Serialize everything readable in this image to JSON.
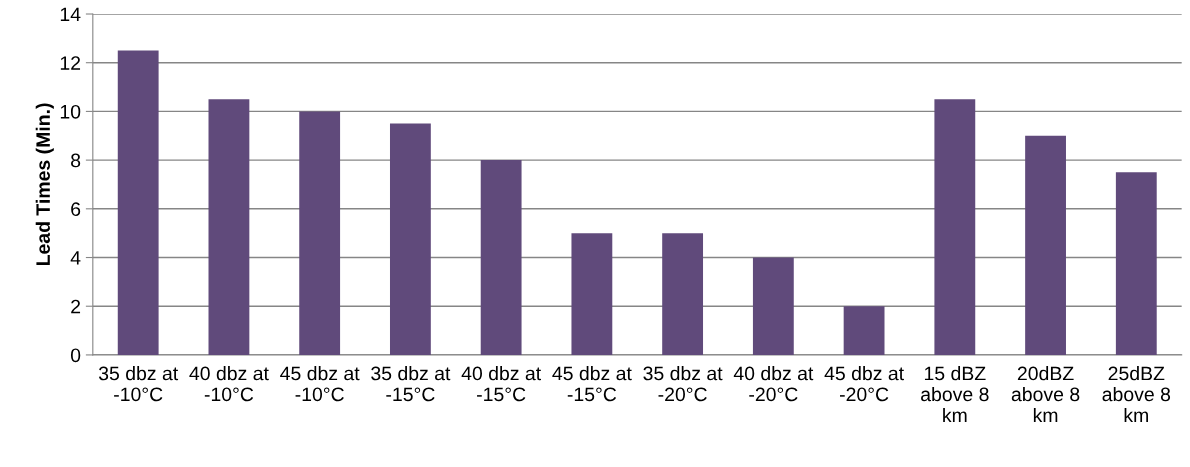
{
  "chart_data": {
    "type": "bar",
    "ylabel": "Lead Times (Min.)",
    "categories": [
      "35 dbz at -10°C",
      "40 dbz at -10°C",
      "45 dbz at -10°C",
      "35 dbz at -15°C",
      "40 dbz at -15°C",
      "45 dbz at -15°C",
      "35 dbz at -20°C",
      "40 dbz at -20°C",
      "45 dbz at -20°C",
      "15 dBZ above 8 km",
      "20dBZ above 8 km",
      "25dBZ above 8 km"
    ],
    "values": [
      12.5,
      10.5,
      10,
      9.5,
      8,
      5,
      5,
      4,
      2,
      10.5,
      9,
      7.5
    ],
    "color": "#604a7b",
    "ylim": [
      0,
      14
    ],
    "yticks": [
      0,
      2,
      4,
      6,
      8,
      10,
      12,
      14
    ],
    "grid": "y",
    "legend": false
  }
}
